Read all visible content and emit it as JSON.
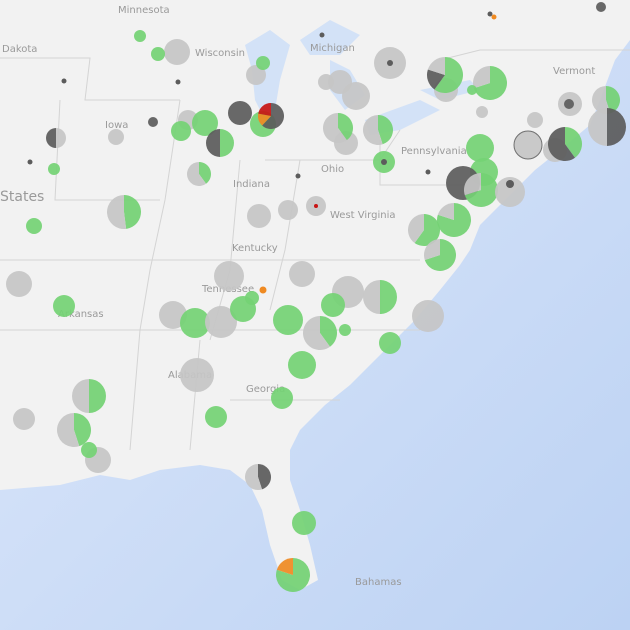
{
  "map": {
    "labels": {
      "minnesota": "Minnesota",
      "dakota": "Dakota",
      "wisconsin": "Wisconsin",
      "michigan": "Michigan",
      "iowa": "Iowa",
      "indiana": "Indiana",
      "ohio": "Ohio",
      "pennsylvania": "Pennsylvania",
      "west_virginia": "West Virginia",
      "kentucky": "Kentucky",
      "tennessee": "Tennessee",
      "arkansas": "Arkansas",
      "states": "States",
      "alabama": "Alabama",
      "georgia": "Georgia",
      "vermont": "Vermont",
      "bahamas": "Bahamas"
    },
    "colors": {
      "land": "#f2f2f2",
      "ocean": "#c8daf5",
      "lakes": "#d3e2f7",
      "green": "#74d274",
      "grey": "#c6c6c6",
      "dark": "#5c5c5c",
      "orange": "#ef8a22",
      "red": "#c81414"
    },
    "markers": [
      [
        [
          "green",
          1
        ]
      ],
      [
        [
          "grey",
          1
        ]
      ],
      [
        [
          "green",
          1
        ]
      ],
      [
        [
          "grey",
          1
        ]
      ],
      [
        [
          "green",
          1
        ]
      ],
      [
        [
          "dark",
          1
        ]
      ],
      [
        [
          "green",
          1
        ]
      ],
      [
        [
          "dark",
          0.62
        ],
        [
          "orange",
          0.16
        ],
        [
          "red",
          0.22
        ]
      ],
      [
        [
          "grey",
          1
        ]
      ],
      [
        [
          "green",
          1
        ]
      ],
      [
        [
          "green",
          1
        ]
      ],
      [
        [
          "green",
          0.5
        ],
        [
          "dark",
          0.5
        ]
      ],
      [
        [
          "grey",
          0.5
        ],
        [
          "dark",
          0.5
        ]
      ],
      [
        [
          "grey",
          1
        ]
      ],
      [
        [
          "dark",
          1
        ]
      ],
      [
        [
          "green",
          0.4
        ],
        [
          "grey",
          0.6
        ]
      ],
      [
        [
          "green",
          0.48
        ],
        [
          "grey",
          0.52
        ]
      ],
      [
        [
          "green",
          1
        ]
      ],
      [
        [
          "green",
          1
        ]
      ],
      [
        [
          "grey",
          1
        ]
      ],
      [
        [
          "grey",
          1
        ]
      ],
      [
        [
          "grey",
          1
        ]
      ],
      [
        [
          "grey",
          1
        ]
      ],
      [
        [
          "grey",
          1
        ]
      ],
      [
        [
          "green",
          0.4
        ],
        [
          "grey",
          0.6
        ]
      ],
      [
        [
          "green",
          0.45
        ],
        [
          "grey",
          0.55
        ]
      ],
      [
        [
          "green",
          1
        ]
      ],
      [
        [
          "grey",
          1
        ]
      ],
      [
        [
          "green",
          0.6
        ],
        [
          "dark",
          0.2
        ],
        [
          "grey",
          0.2
        ]
      ],
      [
        [
          "green",
          0.7
        ],
        [
          "grey",
          0.3
        ]
      ],
      [
        [
          "green",
          1
        ]
      ],
      [
        [
          "green",
          1
        ]
      ],
      [
        [
          "green",
          1
        ]
      ],
      [
        [
          "dark",
          1
        ]
      ],
      [
        [
          "green",
          0.7
        ],
        [
          "grey",
          0.3
        ]
      ],
      [
        [
          "grey",
          1
        ]
      ],
      [
        [
          "grey",
          1
        ]
      ],
      [
        [
          "grey",
          1
        ]
      ],
      [
        [
          "grey",
          1
        ]
      ],
      [
        [
          "green",
          0.4
        ],
        [
          "dark",
          0.6
        ]
      ],
      [
        [
          "green",
          0.45
        ],
        [
          "grey",
          0.55
        ]
      ],
      [
        [
          "dark",
          0.5
        ],
        [
          "grey",
          0.5
        ]
      ],
      [
        [
          "grey",
          1
        ]
      ],
      [
        [
          "grey",
          1
        ]
      ],
      [
        [
          "green",
          0.6
        ],
        [
          "grey",
          0.4
        ]
      ],
      [
        [
          "green",
          0.8
        ],
        [
          "grey",
          0.2
        ]
      ],
      [
        [
          "green",
          0.7
        ],
        [
          "grey",
          0.3
        ]
      ],
      [
        [
          "grey",
          1
        ]
      ],
      [
        [
          "grey",
          1
        ]
      ],
      [
        [
          "grey",
          1
        ]
      ],
      [
        [
          "grey",
          1
        ]
      ],
      [
        [
          "green",
          1
        ]
      ],
      [
        [
          "grey",
          1
        ]
      ],
      [
        [
          "grey",
          1
        ]
      ],
      [
        [
          "grey",
          1
        ]
      ],
      [
        [
          "green",
          1
        ]
      ],
      [
        [
          "grey",
          1
        ]
      ],
      [
        [
          "green",
          1
        ]
      ],
      [
        [
          "green",
          1
        ]
      ],
      [
        [
          "green",
          1
        ]
      ],
      [
        [
          "grey",
          1
        ]
      ],
      [
        [
          "green",
          0.5
        ],
        [
          "grey",
          0.5
        ]
      ],
      [
        [
          "grey",
          1
        ]
      ],
      [
        [
          "green",
          0.4
        ],
        [
          "grey",
          0.6
        ]
      ],
      [
        [
          "green",
          1
        ]
      ],
      [
        [
          "green",
          1
        ]
      ],
      [
        [
          "grey",
          1
        ]
      ],
      [
        [
          "green",
          1
        ]
      ],
      [
        [
          "green",
          1
        ]
      ],
      [
        [
          "green",
          0.5
        ],
        [
          "grey",
          0.5
        ]
      ],
      [
        [
          "green",
          0.45
        ],
        [
          "grey",
          0.55
        ]
      ],
      [
        [
          "grey",
          1
        ]
      ],
      [
        [
          "grey",
          1
        ]
      ],
      [
        [
          "green",
          1
        ]
      ],
      [
        [
          "green",
          1
        ]
      ],
      [
        [
          "green",
          1
        ]
      ],
      [
        [
          "dark",
          0.45
        ],
        [
          "grey",
          0.55
        ]
      ],
      [
        [
          "green",
          1
        ]
      ],
      [
        [
          "green",
          0.8
        ],
        [
          "orange",
          0.2
        ]
      ],
      [
        [
          "dark",
          1
        ]
      ],
      [
        [
          "dark",
          1
        ]
      ],
      [
        [
          "dark",
          1
        ]
      ],
      [
        [
          "dark",
          1
        ]
      ],
      [
        [
          "dark",
          1
        ]
      ],
      [
        [
          "dark",
          1
        ]
      ],
      [
        [
          "dark",
          1
        ]
      ],
      [
        [
          "dark",
          1
        ]
      ],
      [
        [
          "dark",
          1
        ]
      ],
      [
        [
          "dark",
          1
        ]
      ],
      [
        [
          "dark",
          1
        ]
      ],
      [
        [
          "dark",
          1
        ]
      ],
      [
        [
          "orange",
          1
        ]
      ],
      [
        [
          "orange",
          1
        ]
      ],
      [
        [
          "red",
          1
        ]
      ]
    ]
  }
}
